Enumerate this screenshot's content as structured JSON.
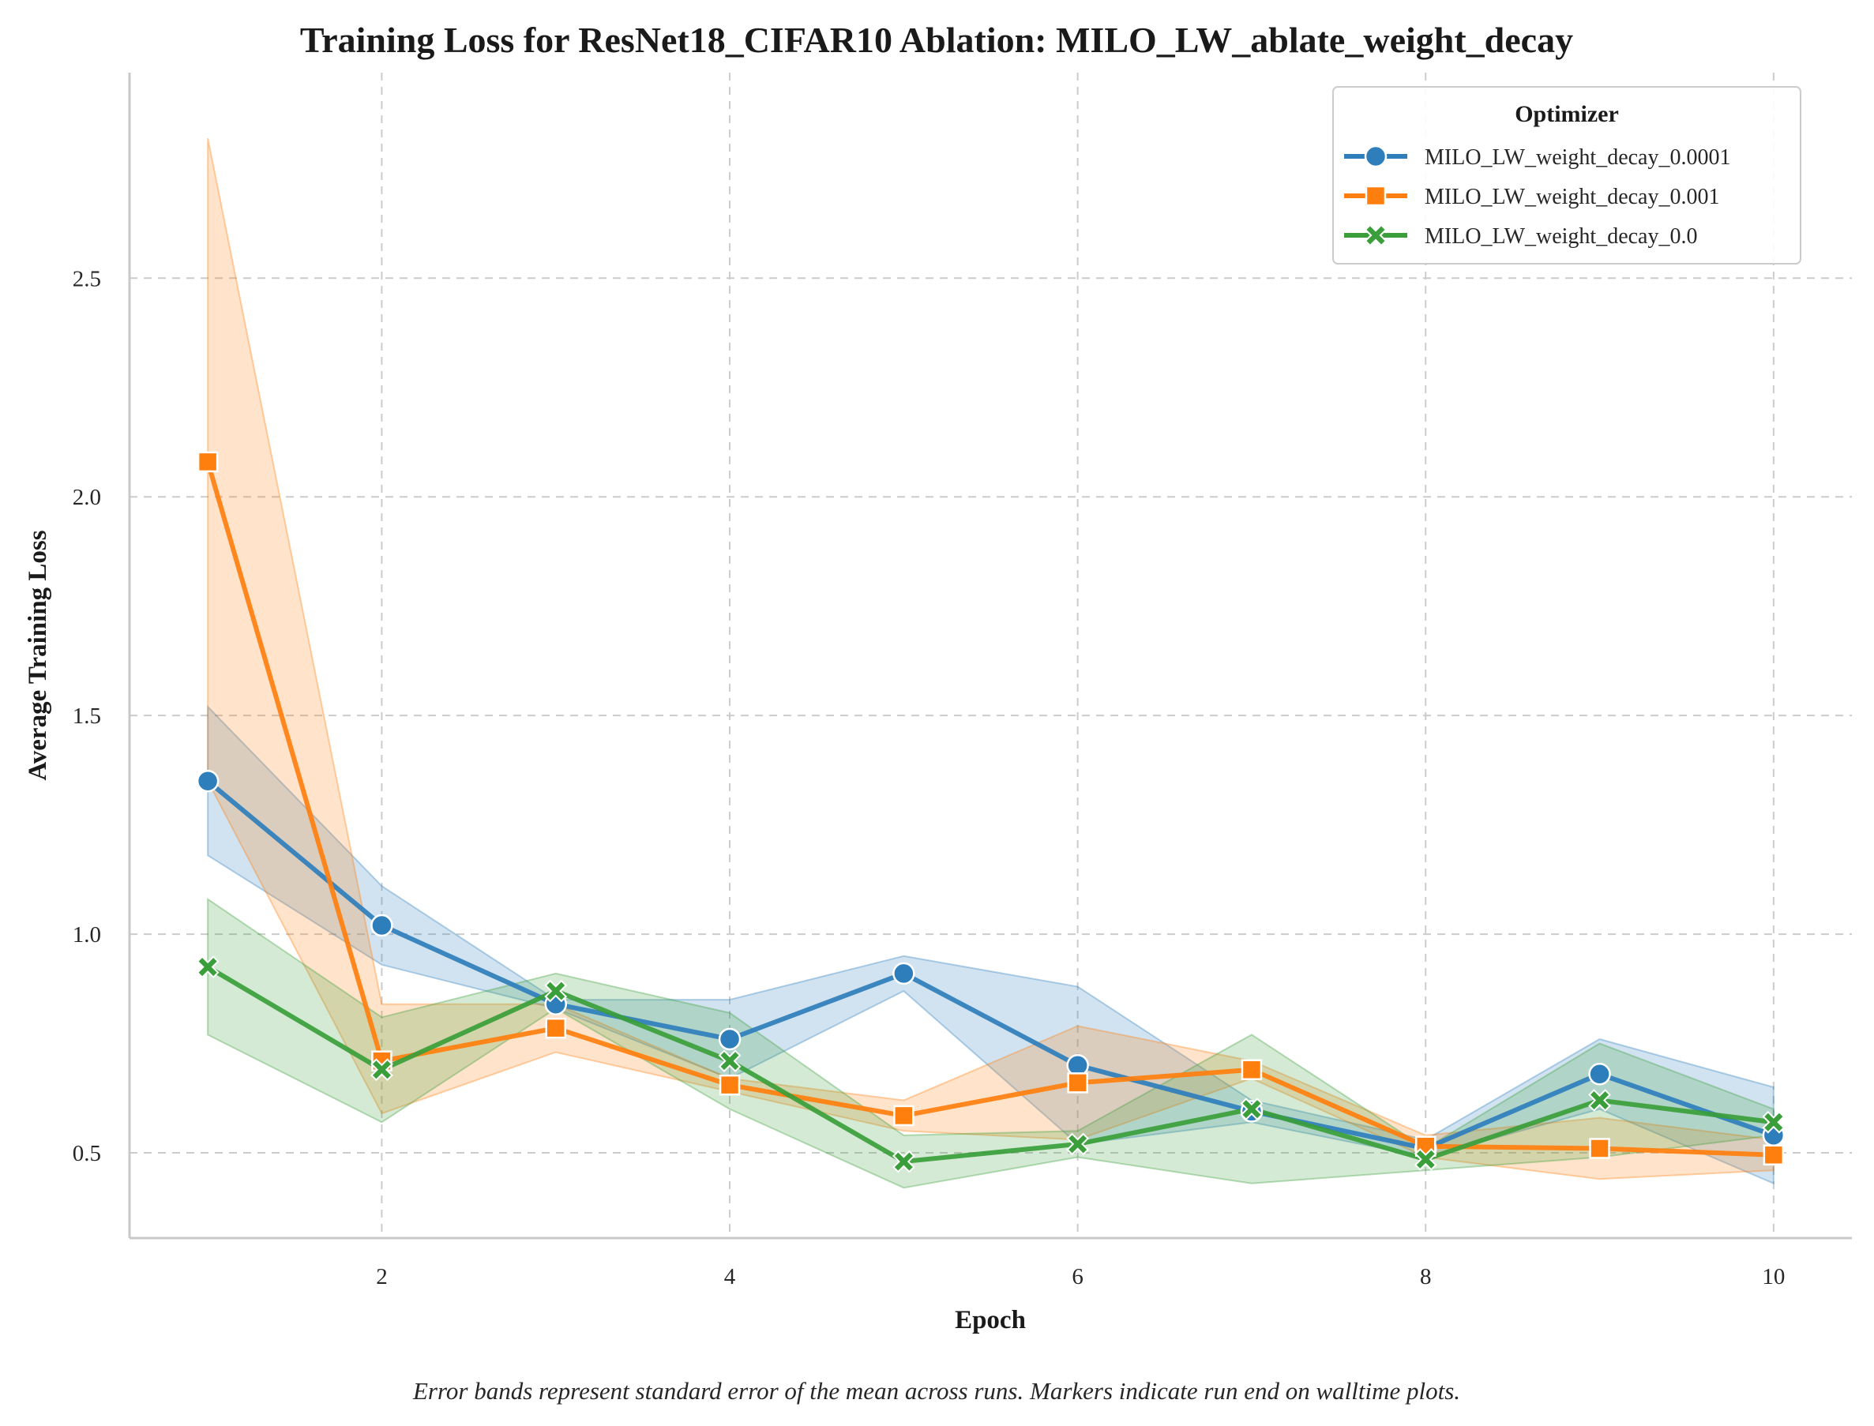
{
  "chart_data": {
    "type": "line",
    "title": "Training Loss for ResNet18_CIFAR10 Ablation: MILO_LW_ablate_weight_decay",
    "xlabel": "Epoch",
    "ylabel": "Average Training Loss",
    "caption": "Error bands represent standard error of the mean across runs. Markers indicate run end on walltime plots.",
    "xlim": [
      0.55,
      10.45
    ],
    "ylim": [
      0.305,
      2.97
    ],
    "x_ticks": [
      2,
      4,
      6,
      8,
      10
    ],
    "y_ticks": [
      0.5,
      1.0,
      1.5,
      2.0,
      2.5
    ],
    "x_tick_labels": [
      "2",
      "4",
      "6",
      "8",
      "10"
    ],
    "y_tick_labels": [
      "0.5",
      "1.0",
      "1.5",
      "2.0",
      "2.5"
    ],
    "grid": true,
    "legend": {
      "title": "Optimizer",
      "position": "top-right"
    },
    "x": [
      1,
      2,
      3,
      4,
      5,
      6,
      7,
      8,
      9,
      10
    ],
    "series": [
      {
        "name": "MILO_LW_weight_decay_0.0001",
        "color": "#2f7ebc",
        "marker": "circle",
        "values": [
          1.35,
          1.02,
          0.84,
          0.76,
          0.91,
          0.7,
          0.595,
          0.51,
          0.68,
          0.54
        ],
        "lower": [
          1.18,
          0.93,
          0.83,
          0.67,
          0.87,
          0.52,
          0.57,
          0.49,
          0.6,
          0.43
        ],
        "upper": [
          1.52,
          1.11,
          0.85,
          0.85,
          0.95,
          0.88,
          0.62,
          0.53,
          0.76,
          0.65
        ]
      },
      {
        "name": "MILO_LW_weight_decay_0.001",
        "color": "#ff7f0e",
        "marker": "square",
        "values": [
          2.08,
          0.71,
          0.785,
          0.655,
          0.585,
          0.66,
          0.69,
          0.515,
          0.51,
          0.495
        ],
        "lower": [
          1.35,
          0.59,
          0.73,
          0.64,
          0.55,
          0.53,
          0.67,
          0.49,
          0.44,
          0.46
        ],
        "upper": [
          2.82,
          0.84,
          0.84,
          0.67,
          0.62,
          0.79,
          0.71,
          0.54,
          0.58,
          0.53
        ]
      },
      {
        "name": "MILO_LW_weight_decay_0.0",
        "color": "#3a9e3a",
        "marker": "x",
        "values": [
          0.925,
          0.69,
          0.87,
          0.71,
          0.48,
          0.52,
          0.6,
          0.485,
          0.62,
          0.57
        ],
        "lower": [
          0.77,
          0.57,
          0.83,
          0.6,
          0.42,
          0.49,
          0.43,
          0.46,
          0.49,
          0.54
        ],
        "upper": [
          1.08,
          0.81,
          0.91,
          0.82,
          0.54,
          0.55,
          0.77,
          0.51,
          0.75,
          0.6
        ]
      }
    ]
  }
}
